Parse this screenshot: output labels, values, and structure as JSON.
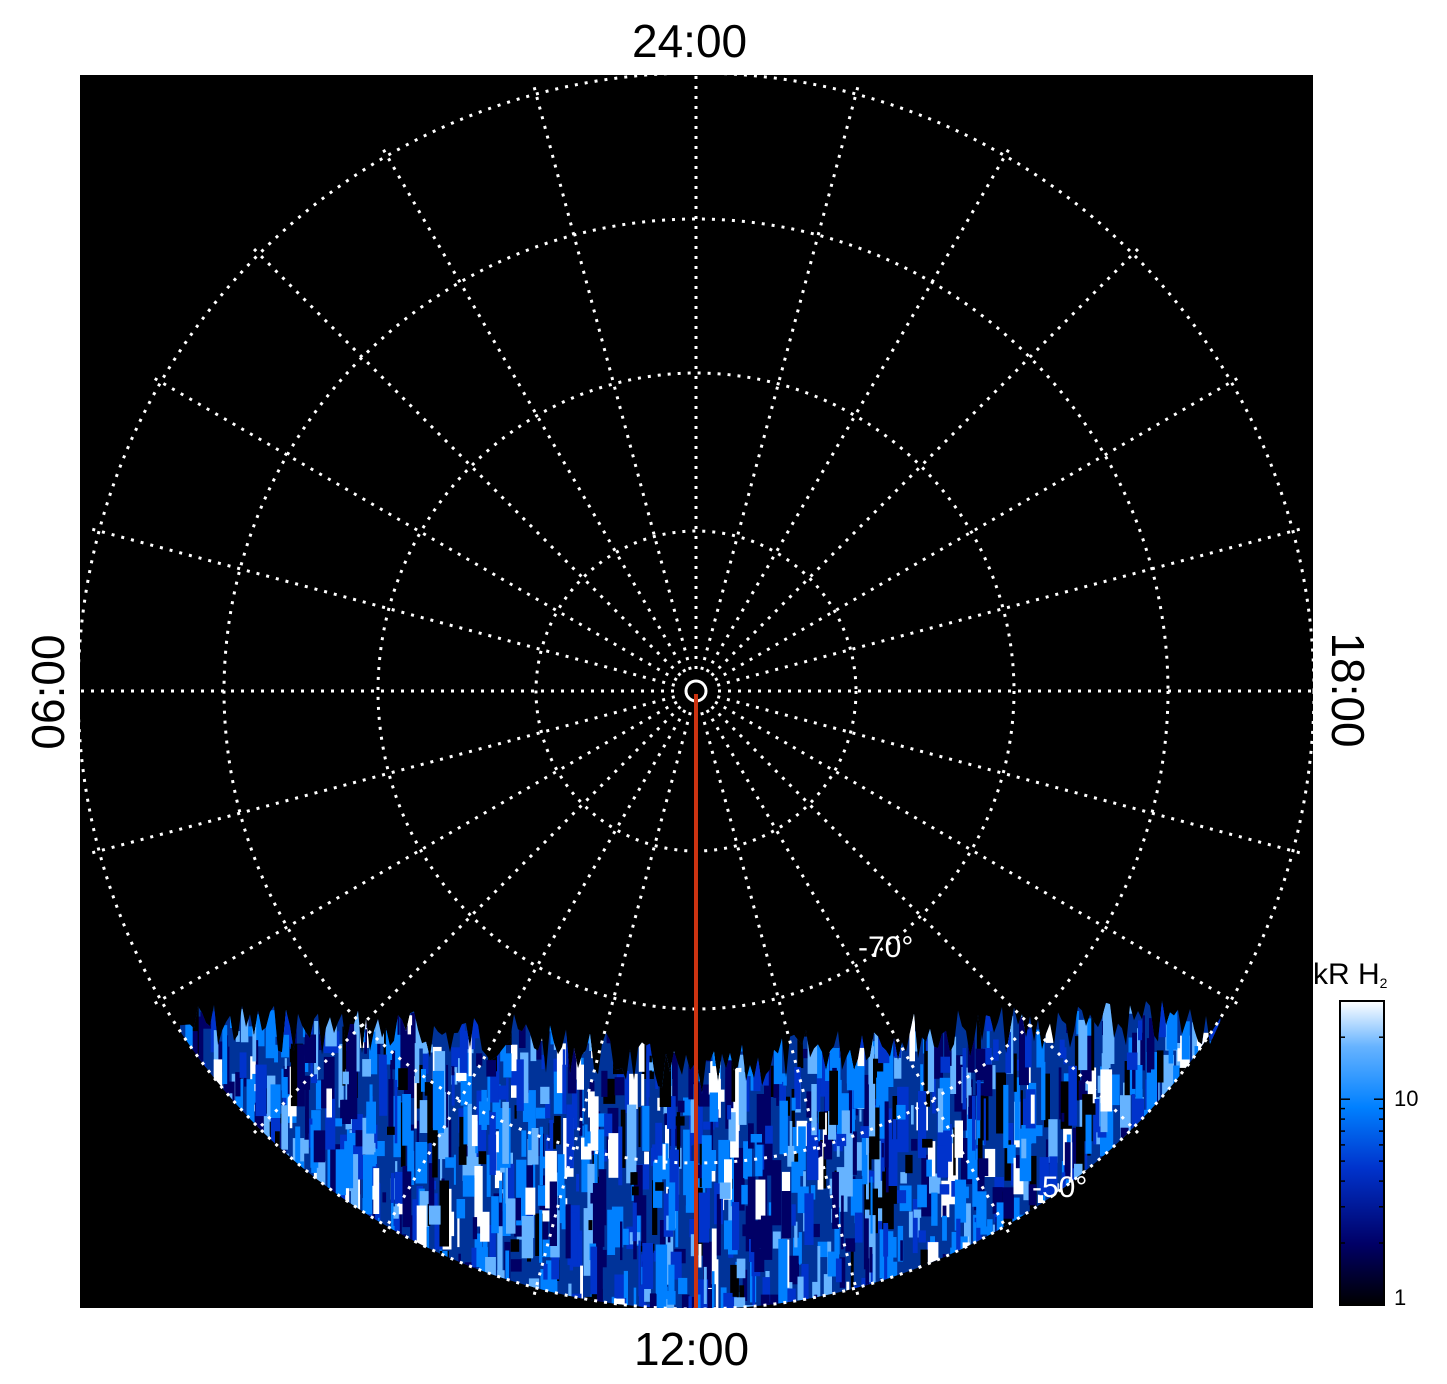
{
  "local_time_labels": {
    "top": "24:00",
    "bottom": "12:00",
    "left": "06:00",
    "right": "18:00"
  },
  "latitude_labels": {
    "inner": "-70°",
    "outer": "-50°"
  },
  "colorbar": {
    "unit": "kR H",
    "unit_subscript": "2",
    "tick_labels": [
      "10",
      "1"
    ],
    "scale": "log",
    "colors": [
      "#000000",
      "#000066",
      "#0033cc",
      "#0080ff",
      "#66b3ff",
      "#ffffff"
    ]
  },
  "colors": {
    "background": "#000000",
    "grid": "#ffffff",
    "meridian_line": "#cc3311"
  }
}
